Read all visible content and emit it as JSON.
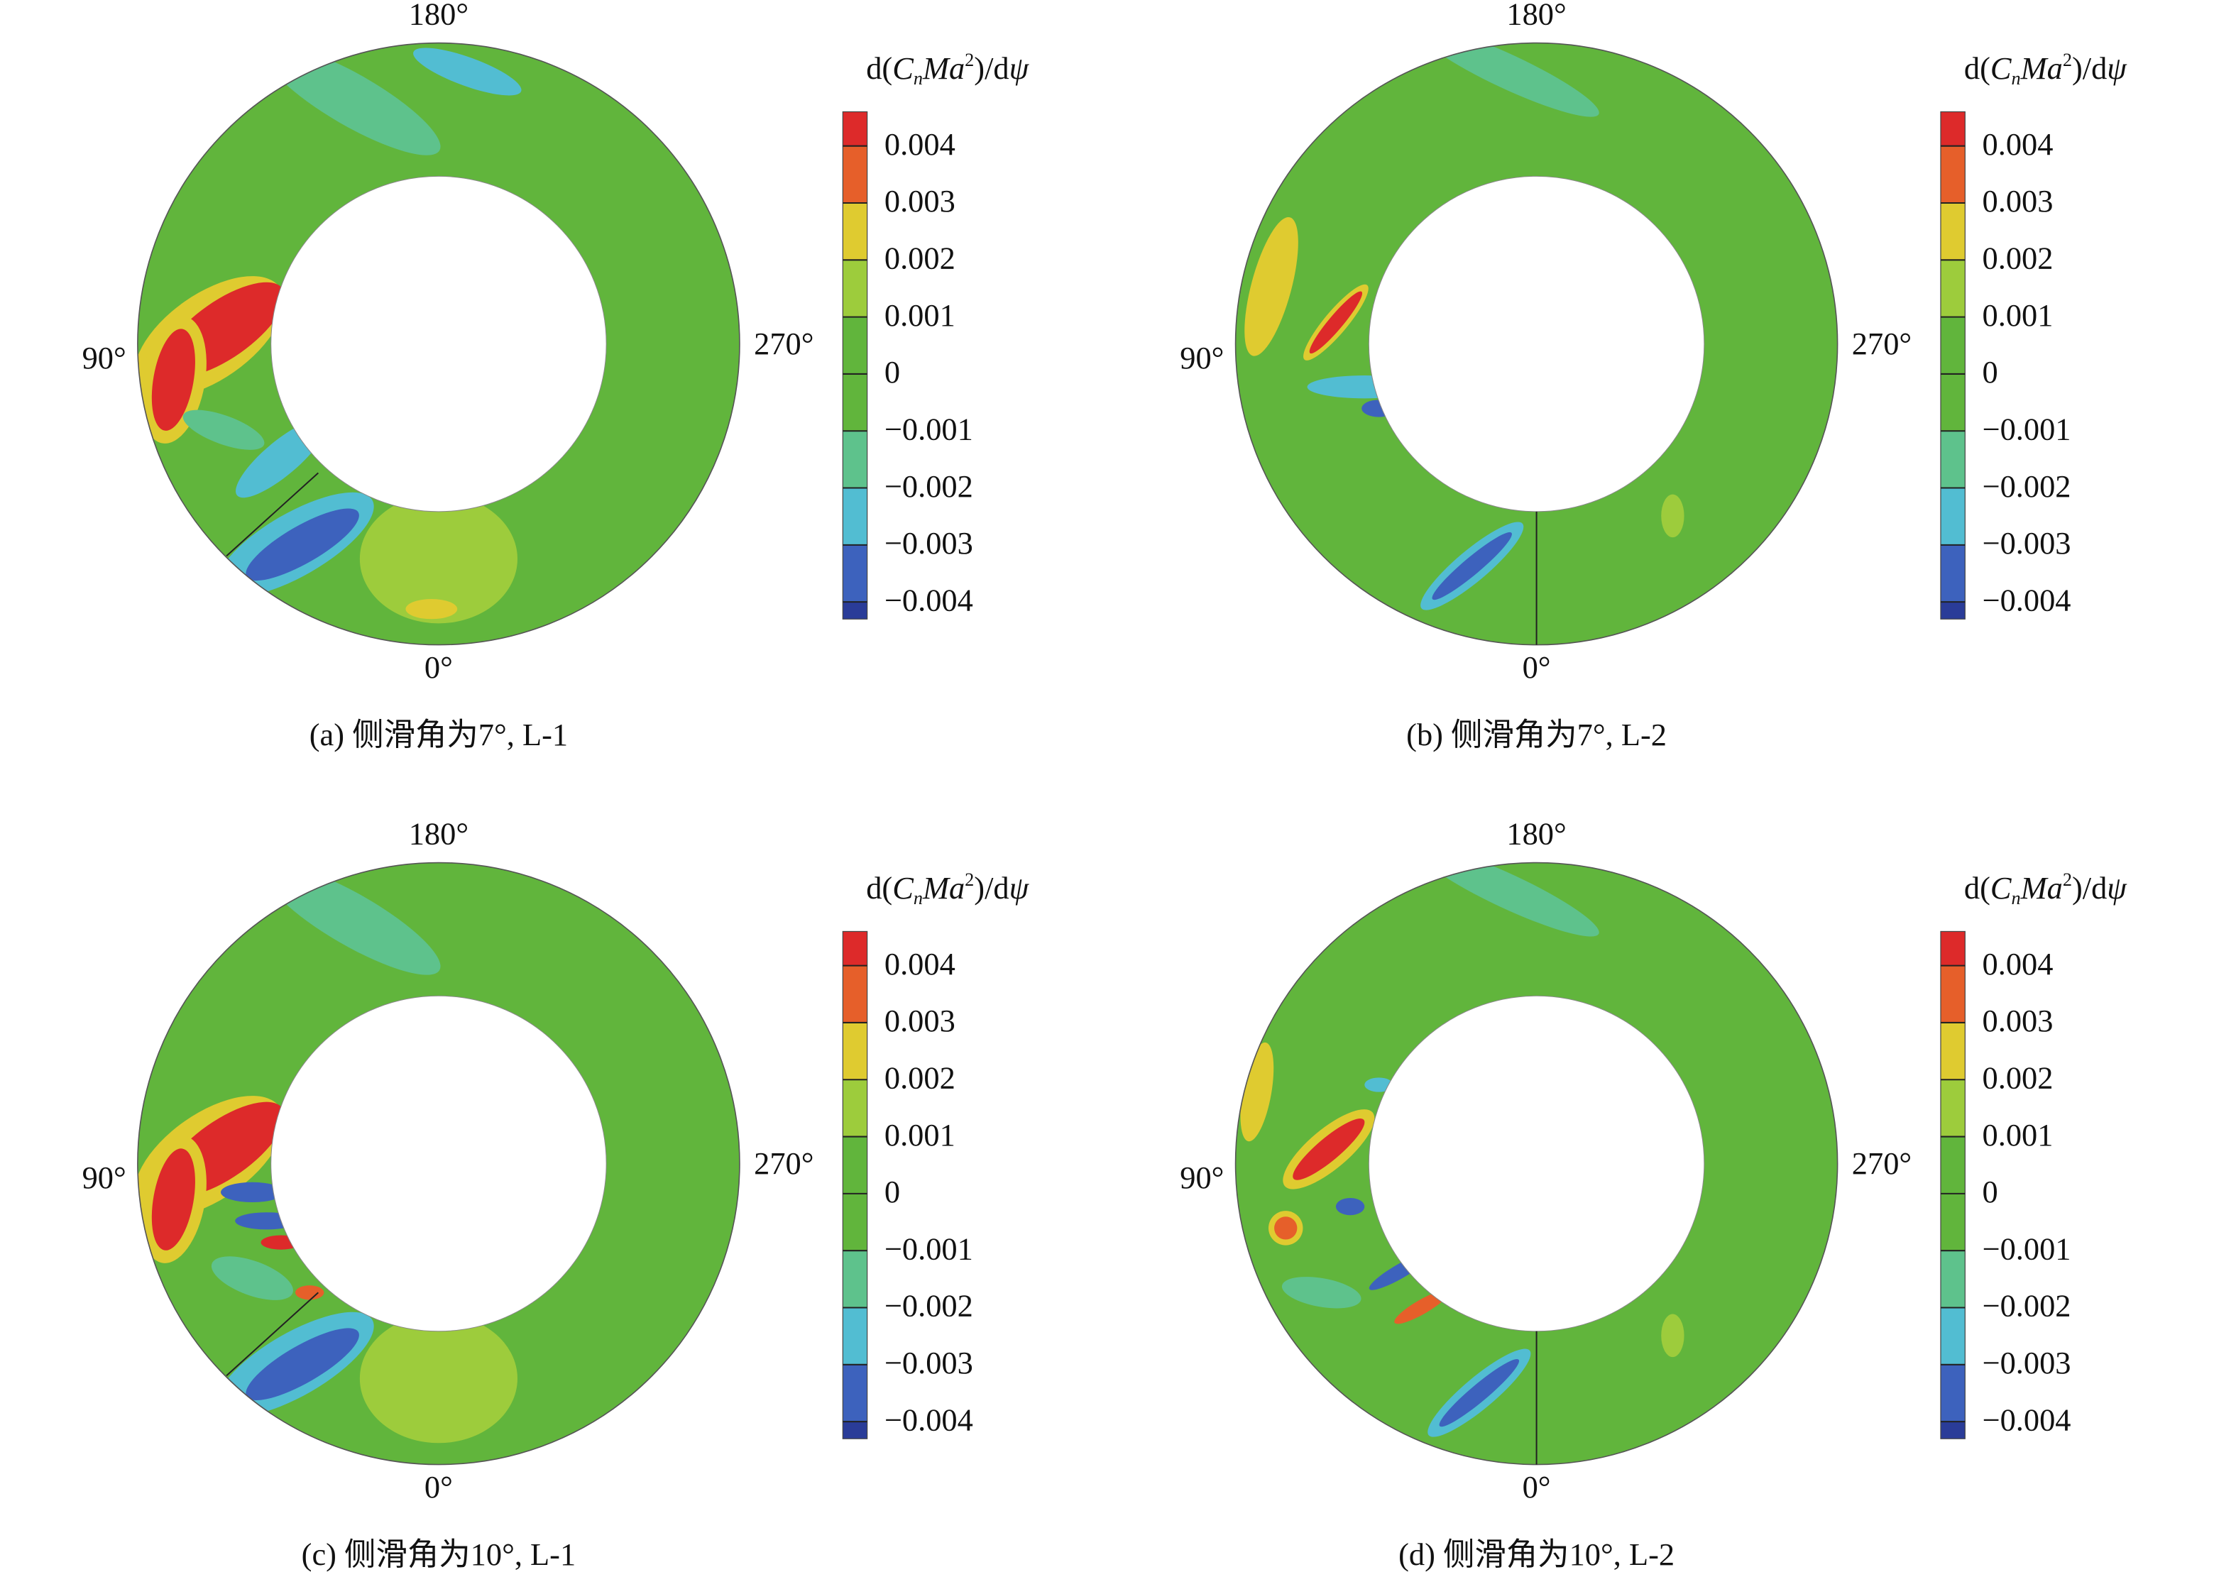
{
  "chart_data": [
    {
      "type": "contour",
      "caption": "(a) 侧滑角为7°, L-1",
      "angle_labels": [
        "0°",
        "90°",
        "180°",
        "270°"
      ],
      "colorbar_title": [
        "d(",
        "C",
        "n",
        "Ma",
        "2",
        ")/d",
        "ψ"
      ],
      "clim": [
        -0.0043,
        0.0046
      ],
      "cticks": [
        0.004,
        0.003,
        0.002,
        0.001,
        0,
        {
          "value": -0.001,
          "label": "−0.001"
        },
        {
          "value": -0.002,
          "label": "−0.002"
        },
        {
          "value": -0.003,
          "label": "−0.003"
        },
        {
          "value": -0.004,
          "label": "−0.004"
        }
      ],
      "colors": [
        "#dd2a2a",
        "#e65f2a",
        "#dfcb30",
        "#9dcc3c",
        "#61b53c",
        "#61b53c",
        "#5ec28c",
        "#52bdd2",
        "#3d62bd",
        "#2a3c98"
      ]
    },
    {
      "type": "contour",
      "caption": "(b) 侧滑角为7°, L-2",
      "angle_labels": [
        "0°",
        "90°",
        "180°",
        "270°"
      ],
      "colorbar_title": [
        "d(",
        "C",
        "n",
        "Ma",
        "2",
        ")/d",
        "ψ"
      ],
      "clim": [
        -0.0043,
        0.0046
      ],
      "cticks": [
        0.004,
        0.003,
        0.002,
        0.001,
        0,
        {
          "value": -0.001,
          "label": "−0.001"
        },
        {
          "value": -0.002,
          "label": "−0.002"
        },
        {
          "value": -0.003,
          "label": "−0.003"
        },
        {
          "value": -0.004,
          "label": "−0.004"
        }
      ],
      "colors": [
        "#dd2a2a",
        "#e65f2a",
        "#dfcb30",
        "#9dcc3c",
        "#61b53c",
        "#61b53c",
        "#5ec28c",
        "#52bdd2",
        "#3d62bd",
        "#2a3c98"
      ]
    },
    {
      "type": "contour",
      "caption": "(c) 侧滑角为10°, L-1",
      "angle_labels": [
        "0°",
        "90°",
        "180°",
        "270°"
      ],
      "colorbar_title": [
        "d(",
        "C",
        "n",
        "Ma",
        "2",
        ")/d",
        "ψ"
      ],
      "clim": [
        -0.0043,
        0.0046
      ],
      "cticks": [
        0.004,
        0.003,
        0.002,
        0.001,
        0,
        {
          "value": -0.001,
          "label": "−0.001"
        },
        {
          "value": -0.002,
          "label": "−0.002"
        },
        {
          "value": -0.003,
          "label": "−0.003"
        },
        {
          "value": -0.004,
          "label": "−0.004"
        }
      ],
      "colors": [
        "#dd2a2a",
        "#e65f2a",
        "#dfcb30",
        "#9dcc3c",
        "#61b53c",
        "#61b53c",
        "#5ec28c",
        "#52bdd2",
        "#3d62bd",
        "#2a3c98"
      ]
    },
    {
      "type": "contour",
      "caption": "(d) 侧滑角为10°, L-2",
      "angle_labels": [
        "0°",
        "90°",
        "180°",
        "270°"
      ],
      "colorbar_title": [
        "d(",
        "C",
        "n",
        "Ma",
        "2",
        ")/d",
        "ψ"
      ],
      "clim": [
        -0.0043,
        0.0046
      ],
      "cticks": [
        0.004,
        0.003,
        0.002,
        0.001,
        0,
        {
          "value": -0.001,
          "label": "−0.001"
        },
        {
          "value": -0.002,
          "label": "−0.002"
        },
        {
          "value": -0.003,
          "label": "−0.003"
        },
        {
          "value": -0.004,
          "label": "−0.004"
        }
      ],
      "colors": [
        "#dd2a2a",
        "#e65f2a",
        "#dfcb30",
        "#9dcc3c",
        "#61b53c",
        "#61b53c",
        "#5ec28c",
        "#52bdd2",
        "#3d62bd",
        "#2a3c98"
      ]
    }
  ]
}
